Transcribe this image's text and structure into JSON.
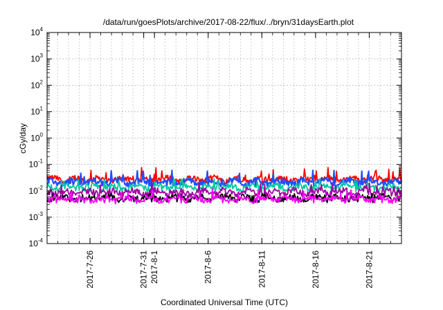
{
  "chart_data": {
    "type": "line",
    "title": "/data/run/goesPlots/archive/2017-08-22/flux/../bryn/31daysEarth.plot",
    "xlabel": "Coordinated Universal Time (UTC)",
    "ylabel": "cGy/day",
    "yscale": "log",
    "ylim": [
      0.0001,
      10000
    ],
    "xlim": [
      "2017-07-22",
      "2017-08-24"
    ],
    "grid": true,
    "y_ticks": [
      {
        "value": 0.0001,
        "base": "10",
        "exp": "-4"
      },
      {
        "value": 0.001,
        "base": "10",
        "exp": "-3"
      },
      {
        "value": 0.01,
        "base": "10",
        "exp": "-2"
      },
      {
        "value": 0.1,
        "base": "10",
        "exp": "-1"
      },
      {
        "value": 1,
        "base": "10",
        "exp": "0"
      },
      {
        "value": 10,
        "base": "10",
        "exp": "1"
      },
      {
        "value": 100,
        "base": "10",
        "exp": "2"
      },
      {
        "value": 1000,
        "base": "10",
        "exp": "3"
      },
      {
        "value": 10000,
        "base": "10",
        "exp": "4"
      }
    ],
    "x_ticks": [
      {
        "date": "2017-07-26",
        "label": "2017-7-26"
      },
      {
        "date": "2017-07-31",
        "label": "2017-7-31"
      },
      {
        "date": "2017-08-01",
        "label": "2017-8-1"
      },
      {
        "date": "2017-08-06",
        "label": "2017-8-6"
      },
      {
        "date": "2017-08-11",
        "label": "2017-8-11"
      },
      {
        "date": "2017-08-16",
        "label": "2017-8-16"
      },
      {
        "date": "2017-08-21",
        "label": "2017-8-21"
      }
    ],
    "series": [
      {
        "color": "#ff0000",
        "baseline": 0.028,
        "spike_max": 0.08
      },
      {
        "color": "#1e50ff",
        "baseline": 0.022,
        "spike_max": 0.06
      },
      {
        "color": "#00c8a0",
        "baseline": 0.014,
        "spike_max": 0.03
      },
      {
        "color": "#a000a0",
        "baseline": 0.009,
        "spike_max": 0.02
      },
      {
        "color": "#000000",
        "baseline": 0.0055,
        "spike_max": 0.008
      },
      {
        "color": "#ff00ff",
        "baseline": 0.005,
        "spike_max": 0.012
      }
    ]
  }
}
